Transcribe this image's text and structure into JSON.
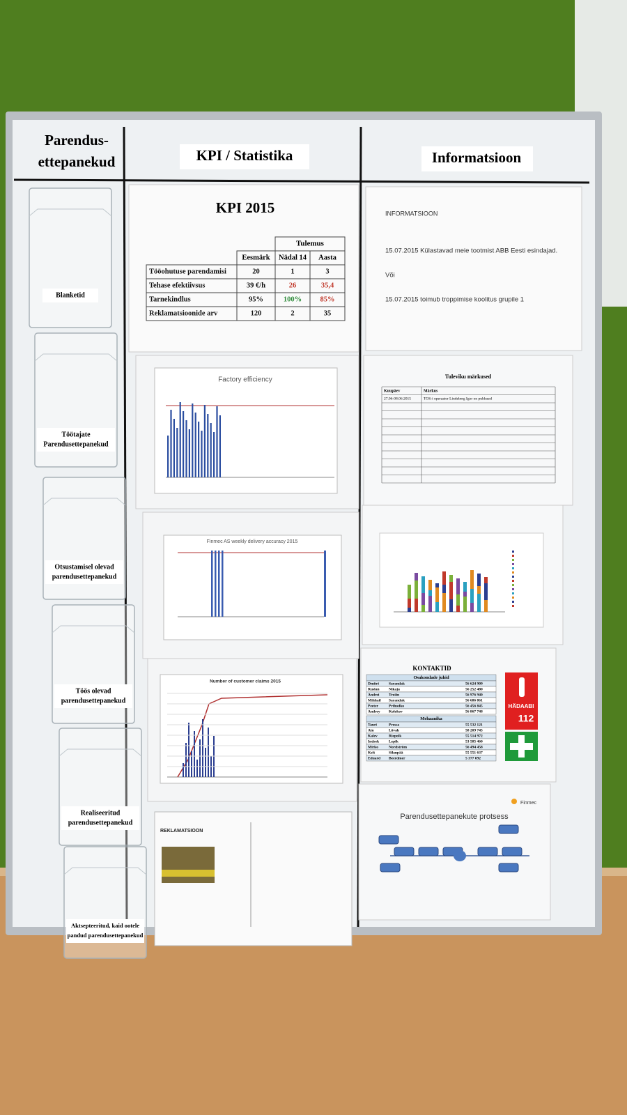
{
  "headers": {
    "left": [
      "Parendus-",
      "ettepanekud"
    ],
    "middle": "KPI / Statistika",
    "right": "Informatsioon"
  },
  "pockets": [
    {
      "label": [
        "Blanketid"
      ]
    },
    {
      "label": [
        "Töötajate",
        "Parendusettepanekud"
      ]
    },
    {
      "label": [
        "Otsustamisel olevad",
        "parendusettepanekud"
      ]
    },
    {
      "label": [
        "Töös olevad",
        "parendusettepanekud"
      ]
    },
    {
      "label": [
        "Realiseeritud",
        "parendusettepanekud"
      ]
    },
    {
      "label": [
        "Aktsepteeritud, kaid ootele",
        "pandud parendusettepanekud"
      ]
    }
  ],
  "kpi": {
    "title": "KPI 2015",
    "group_header": "Tulemus",
    "columns": [
      "Eesmärk",
      "Nädal 14",
      "Aasta"
    ],
    "rows": [
      [
        "Tööohutuse parendamisi",
        "20",
        "1",
        "3"
      ],
      [
        "Tehase efektiivsus",
        "39 €/h",
        "26",
        "35,4"
      ],
      [
        "Tarnekindlus",
        "95%",
        "100%",
        "85%"
      ],
      [
        "Reklamatsioonide arv",
        "120",
        "2",
        "35"
      ]
    ]
  },
  "info": {
    "heading": "INFORMATSIOON",
    "lines": [
      "15.07.2015 Külastavad meie tootmist ABB Eesti esindajad.",
      "Või",
      "15.07.2015 toimub troppimise koolitus grupile 1"
    ]
  },
  "charts": [
    "Factory efficiency",
    "Finmec AS weekly delivery accuracy 2015",
    "Number of customer claims 2015"
  ],
  "notes": {
    "title": "Tuleviku märkused",
    "columns": [
      "Kuupäev",
      "Märkus"
    ],
    "rows": [
      [
        "27.06-08.06.2015",
        "TOS-i operaator Lindeberg Igor on puhkusel"
      ]
    ]
  },
  "contacts": {
    "title": "KONTAKTID",
    "sections": [
      {
        "title": "Osakondade juhid",
        "rows": [
          [
            "Dmitri",
            "Sarandak",
            "56 624 909"
          ],
          [
            "Ruslan",
            "Nikaja",
            "56 252 480"
          ],
          [
            "Andrei",
            "Trošin",
            "56 976 940"
          ],
          [
            "Mihhail",
            "Sarandak",
            "56 686 861"
          ],
          [
            "Peeter",
            "Prihodko",
            "56 456 845"
          ],
          [
            "Andrey",
            "Kolokov",
            "56 867 748"
          ]
        ]
      },
      {
        "title": "Mehaanika",
        "rows": [
          [
            "Tauri",
            "Pressa",
            "55 532 121"
          ],
          [
            "Ain",
            "Lõvak",
            "58 209 745"
          ],
          [
            "Kalev",
            "Riepolk",
            "55 514 972"
          ],
          [
            "Indrek",
            "Lepik",
            "53 585 460"
          ],
          [
            "Mirko",
            "Nordström",
            "56 494 458"
          ],
          [
            "Kelt",
            "Silanpää",
            "55 551 637"
          ],
          [
            "Eduard",
            "Beerdmer",
            "5 377 692"
          ]
        ]
      }
    ],
    "emergency": [
      "HÄDAABI",
      "112"
    ]
  },
  "process": {
    "title": "Parendusettepanekute protsess",
    "logo": "Finmec"
  },
  "claim_form": {
    "title": "REKLAMATSIOON"
  }
}
